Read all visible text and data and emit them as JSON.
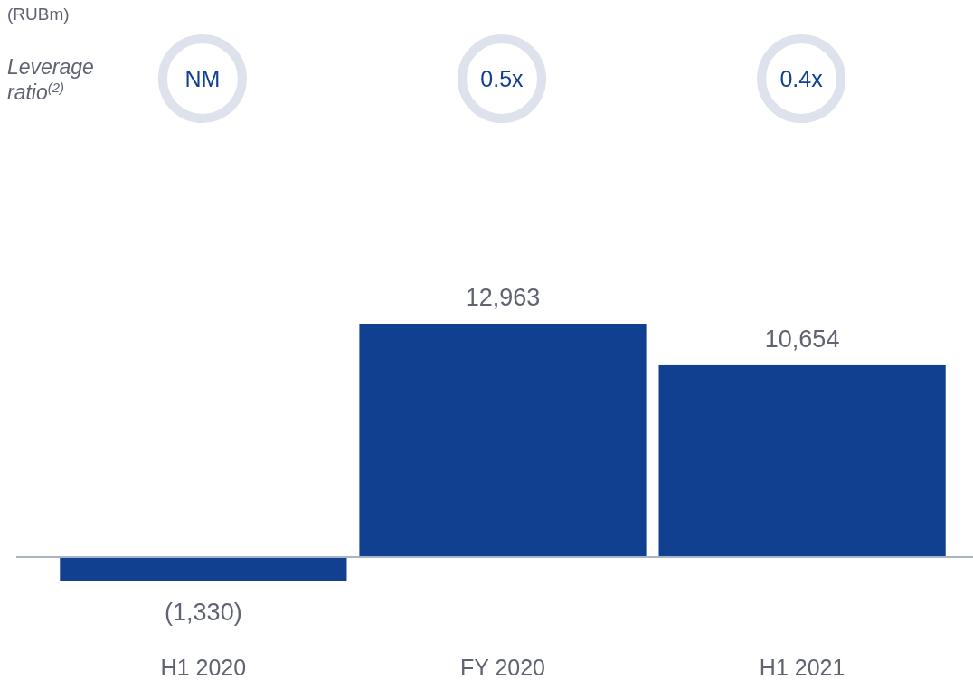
{
  "chart_data": {
    "type": "bar",
    "categories": [
      "H1 2020",
      "FY 2020",
      "H1 2021"
    ],
    "values": [
      -1330,
      12963,
      10654
    ],
    "value_labels": [
      "(1,330)",
      "12,963",
      "10,654"
    ],
    "color": "#10408f",
    "annotations": [
      "(RUBm)",
      "Leverage ratio$^{(2)}$",
      "NM",
      "0.5x",
      "0.4x"
    ]
  }
}
